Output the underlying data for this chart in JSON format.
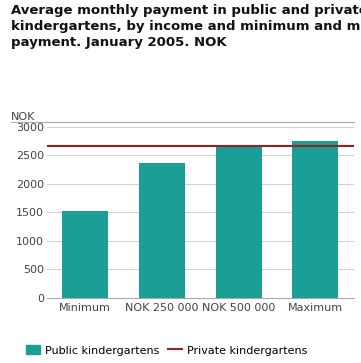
{
  "title_line1": "Average monthly payment in public and private",
  "title_line2": "kindergartens, by income and minimum and maximum",
  "title_line3": "payment. January 2005. NOK",
  "ylabel": "NOK",
  "categories": [
    "Minimum",
    "NOK 250 000",
    "NOK 500 000",
    "Maximum"
  ],
  "bar_values": [
    1530,
    2370,
    2690,
    2760
  ],
  "bar_color": "#1a9e96",
  "private_line_value": 2660,
  "private_line_color": "#9b2020",
  "ylim": [
    0,
    3000
  ],
  "yticks": [
    0,
    500,
    1000,
    1500,
    2000,
    2500,
    3000
  ],
  "legend_bar_label": "Public kindergartens",
  "legend_line_label": "Private kindergartens",
  "background_color": "#ffffff",
  "grid_color": "#d0d0d0",
  "title_fontsize": 9.5,
  "tick_fontsize": 8,
  "bar_width": 0.6,
  "separator_color": "#aaaaaa"
}
